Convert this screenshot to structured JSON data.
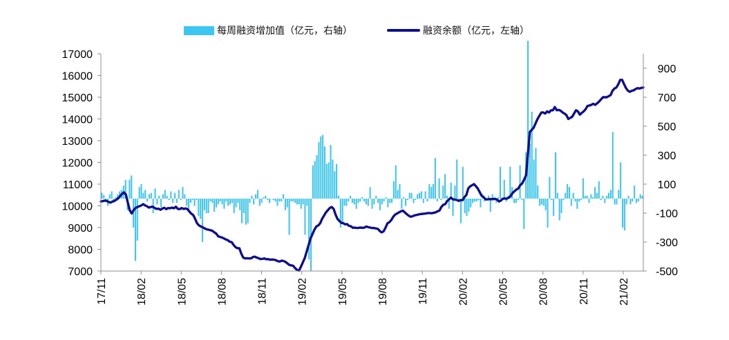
{
  "chart_data": {
    "type": "bar+line",
    "legend": [
      {
        "label": "每周融资增加值（亿元，右轴）",
        "color": "#3DC6F2",
        "kind": "bar"
      },
      {
        "label": "融资余额（亿元，左轴）",
        "color": "#0F0F8C",
        "kind": "line"
      }
    ],
    "x_tick_labels": [
      "17/11",
      "18/02",
      "18/05",
      "18/08",
      "18/11",
      "19/02",
      "19/05",
      "19/08",
      "19/11",
      "20/02",
      "20/05",
      "20/08",
      "20/11",
      "21/02"
    ],
    "left_axis": {
      "min": 7000,
      "max": 17000,
      "ticks": [
        7000,
        8000,
        9000,
        10000,
        11000,
        12000,
        13000,
        14000,
        15000,
        16000,
        17000
      ]
    },
    "right_axis": {
      "min": -500,
      "max": 1000,
      "ticks": [
        -500,
        -300,
        -100,
        100,
        300,
        500,
        700,
        900
      ]
    },
    "series": [
      {
        "name": "每周融资增加值（亿元，右轴）",
        "axis": "right",
        "type": "bar",
        "values": [
          40,
          25,
          -10,
          -50,
          30,
          50,
          -30,
          10,
          30,
          50,
          60,
          90,
          130,
          -80,
          130,
          160,
          -200,
          -430,
          -290,
          80,
          100,
          40,
          60,
          -20,
          30,
          40,
          -100,
          70,
          -40,
          20,
          -60,
          30,
          60,
          20,
          -10,
          50,
          -30,
          40,
          -30,
          60,
          -10,
          80,
          30,
          -50,
          -80,
          -30,
          -10,
          -50,
          -10,
          -120,
          -140,
          -300,
          -80,
          -100,
          -100,
          -20,
          -30,
          -90,
          -60,
          -40,
          -20,
          -40,
          -70,
          -20,
          -50,
          -40,
          -30,
          -100,
          -60,
          -30,
          -80,
          -170,
          -100,
          -180,
          -170,
          -30,
          20,
          -40,
          30,
          60,
          -50,
          -30,
          10,
          20,
          -10,
          -30,
          0,
          -10,
          -20,
          -50,
          -20,
          -20,
          30,
          -80,
          -60,
          -250,
          -20,
          -20,
          -30,
          -40,
          -40,
          -70,
          -40,
          -250,
          -50,
          -420,
          -500,
          230,
          260,
          300,
          390,
          430,
          440,
          360,
          240,
          250,
          370,
          270,
          190,
          240,
          20,
          -200,
          -170,
          -50,
          -50,
          -20,
          20,
          -30,
          -40,
          -70,
          -30,
          -20,
          10,
          -20,
          -40,
          -50,
          80,
          -70,
          -40,
          20,
          -30,
          -80,
          -40,
          -20,
          10,
          -60,
          -30,
          -30,
          120,
          230,
          60,
          100,
          -70,
          10,
          -50,
          -10,
          40,
          40,
          -30,
          -10,
          30,
          40,
          50,
          -30,
          50,
          -20,
          100,
          80,
          100,
          280,
          -20,
          140,
          -10,
          90,
          170,
          20,
          -70,
          110,
          -120,
          90,
          270,
          -20,
          -170,
          220,
          -100,
          -120,
          -90,
          -60,
          -30,
          -20,
          -20,
          -10,
          -60,
          30,
          -20,
          -10,
          20,
          -90,
          30,
          10,
          -30,
          10,
          220,
          0,
          130,
          -20,
          20,
          220,
          80,
          -30,
          -30,
          -10,
          230,
          -10,
          -210,
          320,
          1090,
          380,
          600,
          270,
          350,
          90,
          -50,
          -40,
          -50,
          -80,
          -200,
          150,
          -10,
          -120,
          320,
          40,
          -150,
          -100,
          -10,
          40,
          100,
          80,
          -50,
          40,
          -20,
          -70,
          -20,
          -10,
          140,
          20,
          20,
          -30,
          30,
          10,
          80,
          40,
          120,
          -10,
          20,
          -30,
          20,
          40,
          60,
          460,
          -40,
          -40,
          60,
          250,
          -200,
          -220,
          -40,
          20,
          -40,
          -20,
          90,
          -30,
          -20,
          30,
          20
        ],
        "note": "values estimated from the bars, in 亿元 per week"
      },
      {
        "name": "融资余额（亿元，左轴）",
        "axis": "left",
        "type": "line",
        "values": [
          10200,
          10220,
          10240,
          10230,
          10180,
          10150,
          10200,
          10230,
          10280,
          10350,
          10450,
          10550,
          10620,
          10520,
          10150,
          9800,
          9650,
          9800,
          9900,
          9950,
          9980,
          10020,
          10080,
          10020,
          9980,
          9920,
          9950,
          9960,
          9900,
          9860,
          9870,
          9820,
          9880,
          9910,
          9850,
          9900,
          9890,
          9920,
          9890,
          9960,
          9860,
          9850,
          9900,
          9860,
          9880,
          9850,
          9740,
          9640,
          9580,
          9400,
          9200,
          9100,
          9050,
          9010,
          8960,
          8920,
          8900,
          8880,
          8850,
          8780,
          8720,
          8600,
          8570,
          8540,
          8500,
          8450,
          8420,
          8350,
          8330,
          8200,
          8100,
          8050,
          8050,
          7800,
          7620,
          7580,
          7590,
          7580,
          7580,
          7640,
          7660,
          7620,
          7590,
          7550,
          7560,
          7580,
          7540,
          7550,
          7520,
          7530,
          7520,
          7500,
          7450,
          7440,
          7480,
          7460,
          7420,
          7350,
          7280,
          7260,
          7240,
          7130,
          7050,
          7020,
          7200,
          7400,
          7600,
          7900,
          8200,
          8500,
          8700,
          8900,
          9050,
          9100,
          9200,
          9400,
          9550,
          9700,
          9800,
          9900,
          9950,
          9860,
          9600,
          9400,
          9300,
          9220,
          9200,
          9150,
          9160,
          9080,
          9060,
          8990,
          9000,
          8980,
          8990,
          9000,
          8990,
          9000,
          9050,
          9020,
          9000,
          8980,
          8980,
          8960,
          8940,
          8840,
          8780,
          8830,
          9000,
          9200,
          9250,
          9350,
          9500,
          9600,
          9650,
          9700,
          9750,
          9780,
          9700,
          9620,
          9550,
          9500,
          9520,
          9560,
          9580,
          9600,
          9620,
          9630,
          9640,
          9650,
          9670,
          9670,
          9660,
          9680,
          9700,
          9750,
          9780,
          9950,
          10050,
          10080,
          10220,
          10300,
          10380,
          10300,
          10290,
          10270,
          10230,
          10260,
          10260,
          10400,
          10500,
          10800,
          10900,
          10950,
          11000,
          10900,
          10790,
          10620,
          10460,
          10400,
          10300,
          10300,
          10310,
          10310,
          10310,
          10320,
          10290,
          10200,
          10250,
          10330,
          10340,
          10330,
          10380,
          10450,
          10590,
          10670,
          10750,
          10800,
          10950,
          11030,
          11200,
          11400,
          12400,
          13400,
          13500,
          13600,
          13800,
          14000,
          14150,
          14300,
          14300,
          14250,
          14350,
          14300,
          14400,
          14400,
          14550,
          14400,
          14420,
          14380,
          14300,
          14250,
          14180,
          14000,
          14050,
          14100,
          14250,
          14400,
          14350,
          14200,
          14280,
          14350,
          14450,
          14600,
          14620,
          14650,
          14700,
          14650,
          14720,
          14800,
          14900,
          15000,
          15000,
          15000,
          15050,
          15100,
          15300,
          15400,
          15450,
          15600,
          15800,
          15800,
          15600,
          15420,
          15300,
          15250,
          15300,
          15320,
          15380,
          15420,
          15400,
          15430,
          15450
        ],
        "note": "values estimated from the line, in 亿元"
      }
    ]
  }
}
